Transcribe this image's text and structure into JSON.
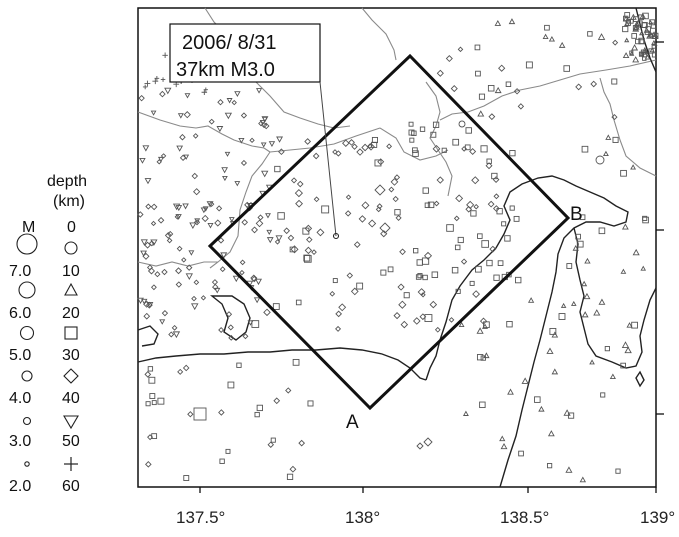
{
  "callout": {
    "date": "2006/ 8/31",
    "details": "37km M3.0"
  },
  "section": {
    "start_label": "A",
    "end_label": "B"
  },
  "legend": {
    "magnitude_header": "M",
    "depth_header_line1": "depth",
    "depth_header_line2": "(km)",
    "magnitudes": [
      "7.0",
      "6.0",
      "5.0",
      "4.0",
      "3.0",
      "2.0"
    ],
    "depths": [
      {
        "value": "0",
        "symbol": "circle"
      },
      {
        "value": "10",
        "symbol": "circle"
      },
      {
        "value": "20",
        "symbol": "triangle-up"
      },
      {
        "value": "30",
        "symbol": "square"
      },
      {
        "value": "40",
        "symbol": "diamond"
      },
      {
        "value": "50",
        "symbol": "triangle-down"
      },
      {
        "value": "60",
        "symbol": "plus"
      }
    ]
  },
  "axis": {
    "x_ticks": [
      "137.5°",
      "138°",
      "138.5°",
      "139°"
    ]
  },
  "colors": {
    "frame": "#111111",
    "coastline": "#222222",
    "prefecture_border": "#8a8a8a",
    "event_symbol": "#555555"
  }
}
